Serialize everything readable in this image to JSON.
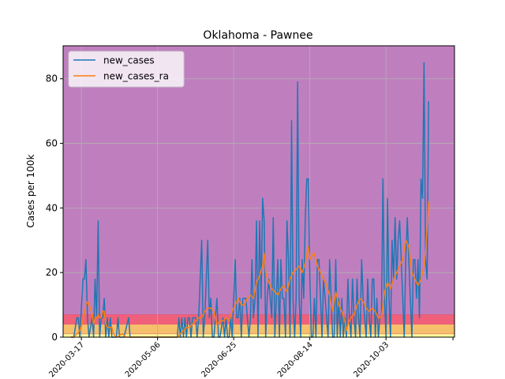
{
  "chart_data": {
    "type": "line",
    "title": "Oklahoma - Pawnee",
    "xlabel": "",
    "ylabel": "Cases per 100k",
    "x_start": "2020-03-10",
    "x_tick_labels": [
      "2020-03-17",
      "2020-05-06",
      "2020-06-25",
      "2020-08-14",
      "2020-10-03"
    ],
    "x_tick_days": [
      7,
      57,
      107,
      157,
      207
    ],
    "y_ticks": [
      0,
      20,
      40,
      60,
      80
    ],
    "ylim": [
      0,
      90.2
    ],
    "xlim_days": [
      -5,
      252
    ],
    "grid": true,
    "legend": {
      "position": "top-left"
    },
    "bands": [
      {
        "from": 0,
        "to": 1,
        "color": "#ffff99"
      },
      {
        "from": 1,
        "to": 4,
        "color": "#f5bf6b"
      },
      {
        "from": 4,
        "to": 7,
        "color": "#f0607a"
      },
      {
        "from": 7,
        "to": 90.2,
        "color": "#bf7fbf"
      }
    ],
    "series": [
      {
        "name": "new_cases",
        "color": "#1f77b4",
        "points": [
          [
            0,
            0
          ],
          [
            2,
            0
          ],
          [
            4,
            6
          ],
          [
            5,
            6
          ],
          [
            6,
            0
          ],
          [
            8,
            18
          ],
          [
            9,
            18
          ],
          [
            10,
            24
          ],
          [
            11,
            6
          ],
          [
            12,
            0
          ],
          [
            14,
            6
          ],
          [
            15,
            0
          ],
          [
            16,
            18
          ],
          [
            17,
            6
          ],
          [
            18,
            36
          ],
          [
            19,
            0
          ],
          [
            20,
            6
          ],
          [
            21,
            6
          ],
          [
            22,
            12
          ],
          [
            23,
            0
          ],
          [
            24,
            6
          ],
          [
            25,
            0
          ],
          [
            26,
            6
          ],
          [
            27,
            0
          ],
          [
            28,
            0
          ],
          [
            30,
            0
          ],
          [
            31,
            6
          ],
          [
            32,
            0
          ],
          [
            34,
            0
          ],
          [
            35,
            0
          ],
          [
            38,
            6
          ],
          [
            39,
            0
          ],
          [
            40,
            0
          ],
          [
            42,
            0
          ],
          [
            44,
            0
          ],
          [
            46,
            0
          ],
          [
            48,
            0
          ],
          [
            50,
            0
          ],
          [
            52,
            0
          ],
          [
            54,
            0
          ],
          [
            56,
            0
          ],
          [
            58,
            0
          ],
          [
            60,
            0
          ],
          [
            62,
            0
          ],
          [
            64,
            0
          ],
          [
            66,
            0
          ],
          [
            68,
            0
          ],
          [
            70,
            0
          ],
          [
            71,
            6
          ],
          [
            72,
            0
          ],
          [
            73,
            6
          ],
          [
            74,
            0
          ],
          [
            75,
            6
          ],
          [
            76,
            0
          ],
          [
            77,
            6
          ],
          [
            78,
            6
          ],
          [
            79,
            0
          ],
          [
            80,
            6
          ],
          [
            82,
            6
          ],
          [
            83,
            0
          ],
          [
            84,
            6
          ],
          [
            86,
            30
          ],
          [
            87,
            0
          ],
          [
            88,
            6
          ],
          [
            90,
            30
          ],
          [
            91,
            6
          ],
          [
            92,
            12
          ],
          [
            93,
            0
          ],
          [
            94,
            0
          ],
          [
            96,
            12
          ],
          [
            97,
            0
          ],
          [
            98,
            0
          ],
          [
            100,
            6
          ],
          [
            101,
            0
          ],
          [
            102,
            6
          ],
          [
            103,
            0
          ],
          [
            104,
            0
          ],
          [
            105,
            6
          ],
          [
            106,
            0
          ],
          [
            107,
            12
          ],
          [
            108,
            24
          ],
          [
            109,
            6
          ],
          [
            110,
            6
          ],
          [
            111,
            12
          ],
          [
            112,
            0
          ],
          [
            113,
            12
          ],
          [
            114,
            12
          ],
          [
            115,
            12
          ],
          [
            116,
            6
          ],
          [
            117,
            0
          ],
          [
            118,
            6
          ],
          [
            119,
            24
          ],
          [
            120,
            6
          ],
          [
            121,
            12
          ],
          [
            122,
            36
          ],
          [
            123,
            0
          ],
          [
            124,
            36
          ],
          [
            125,
            12
          ],
          [
            126,
            43
          ],
          [
            127,
            36
          ],
          [
            128,
            0
          ],
          [
            129,
            12
          ],
          [
            130,
            18
          ],
          [
            131,
            12
          ],
          [
            132,
            6
          ],
          [
            133,
            37
          ],
          [
            134,
            0
          ],
          [
            135,
            12
          ],
          [
            136,
            24
          ],
          [
            137,
            0
          ],
          [
            138,
            24
          ],
          [
            139,
            12
          ],
          [
            140,
            12
          ],
          [
            141,
            0
          ],
          [
            142,
            36
          ],
          [
            143,
            24
          ],
          [
            144,
            0
          ],
          [
            145,
            67
          ],
          [
            146,
            12
          ],
          [
            147,
            0
          ],
          [
            148,
            12
          ],
          [
            149,
            79
          ],
          [
            150,
            12
          ],
          [
            151,
            0
          ],
          [
            152,
            24
          ],
          [
            153,
            12
          ],
          [
            154,
            37
          ],
          [
            155,
            49
          ],
          [
            156,
            49
          ],
          [
            157,
            18
          ],
          [
            158,
            0
          ],
          [
            159,
            0
          ],
          [
            160,
            12
          ],
          [
            161,
            0
          ],
          [
            162,
            24
          ],
          [
            163,
            24
          ],
          [
            164,
            12
          ],
          [
            165,
            0
          ],
          [
            166,
            18
          ],
          [
            167,
            12
          ],
          [
            168,
            6
          ],
          [
            169,
            0
          ],
          [
            170,
            24
          ],
          [
            171,
            12
          ],
          [
            172,
            0
          ],
          [
            173,
            0
          ],
          [
            174,
            24
          ],
          [
            175,
            0
          ],
          [
            176,
            12
          ],
          [
            177,
            0
          ],
          [
            178,
            12
          ],
          [
            179,
            0
          ],
          [
            180,
            6
          ],
          [
            181,
            0
          ],
          [
            182,
            18
          ],
          [
            183,
            6
          ],
          [
            184,
            0
          ],
          [
            185,
            18
          ],
          [
            186,
            6
          ],
          [
            187,
            0
          ],
          [
            188,
            18
          ],
          [
            189,
            6
          ],
          [
            190,
            0
          ],
          [
            191,
            24
          ],
          [
            192,
            12
          ],
          [
            193,
            6
          ],
          [
            194,
            0
          ],
          [
            195,
            18
          ],
          [
            196,
            6
          ],
          [
            197,
            0
          ],
          [
            198,
            18
          ],
          [
            199,
            18
          ],
          [
            200,
            0
          ],
          [
            201,
            12
          ],
          [
            202,
            0
          ],
          [
            203,
            6
          ],
          [
            204,
            6
          ],
          [
            205,
            49
          ],
          [
            206,
            12
          ],
          [
            207,
            0
          ],
          [
            208,
            43
          ],
          [
            209,
            12
          ],
          [
            210,
            0
          ],
          [
            211,
            30
          ],
          [
            212,
            18
          ],
          [
            213,
            37
          ],
          [
            214,
            18
          ],
          [
            215,
            30
          ],
          [
            216,
            36
          ],
          [
            217,
            24
          ],
          [
            218,
            12
          ],
          [
            219,
            0
          ],
          [
            220,
            24
          ],
          [
            221,
            37
          ],
          [
            222,
            24
          ],
          [
            223,
            12
          ],
          [
            224,
            0
          ],
          [
            225,
            24
          ],
          [
            226,
            24
          ],
          [
            227,
            12
          ],
          [
            228,
            24
          ],
          [
            229,
            6
          ],
          [
            230,
            49
          ],
          [
            231,
            43
          ],
          [
            232,
            85
          ],
          [
            233,
            24
          ],
          [
            234,
            18
          ],
          [
            235,
            73
          ]
        ]
      },
      {
        "name": "new_cases_ra",
        "color": "#ff7f0e",
        "points": [
          [
            0,
            0
          ],
          [
            2,
            0
          ],
          [
            4,
            1
          ],
          [
            6,
            2
          ],
          [
            8,
            5
          ],
          [
            10,
            10
          ],
          [
            11,
            11
          ],
          [
            12,
            10
          ],
          [
            13,
            9
          ],
          [
            14,
            7
          ],
          [
            15,
            4
          ],
          [
            16,
            6
          ],
          [
            17,
            6
          ],
          [
            18,
            7
          ],
          [
            19,
            6
          ],
          [
            20,
            6
          ],
          [
            21,
            8
          ],
          [
            22,
            8
          ],
          [
            23,
            4
          ],
          [
            24,
            3
          ],
          [
            25,
            3
          ],
          [
            26,
            3
          ],
          [
            27,
            3
          ],
          [
            28,
            1
          ],
          [
            30,
            0
          ],
          [
            32,
            0.5
          ],
          [
            34,
            1
          ],
          [
            36,
            0
          ],
          [
            40,
            0
          ],
          [
            44,
            0
          ],
          [
            48,
            0
          ],
          [
            52,
            0
          ],
          [
            56,
            0
          ],
          [
            60,
            0
          ],
          [
            64,
            0
          ],
          [
            68,
            0
          ],
          [
            70,
            0
          ],
          [
            72,
            1
          ],
          [
            74,
            2
          ],
          [
            76,
            3
          ],
          [
            78,
            3
          ],
          [
            80,
            4
          ],
          [
            82,
            5
          ],
          [
            84,
            6
          ],
          [
            86,
            6
          ],
          [
            88,
            8
          ],
          [
            90,
            9
          ],
          [
            92,
            9
          ],
          [
            94,
            8
          ],
          [
            96,
            4
          ],
          [
            98,
            5
          ],
          [
            100,
            5
          ],
          [
            102,
            6
          ],
          [
            104,
            5
          ],
          [
            106,
            8
          ],
          [
            108,
            10
          ],
          [
            110,
            12
          ],
          [
            112,
            10
          ],
          [
            114,
            10
          ],
          [
            116,
            12
          ],
          [
            118,
            13
          ],
          [
            120,
            12
          ],
          [
            122,
            17
          ],
          [
            124,
            19
          ],
          [
            126,
            22
          ],
          [
            127,
            26
          ],
          [
            128,
            20
          ],
          [
            130,
            17
          ],
          [
            132,
            15
          ],
          [
            134,
            14
          ],
          [
            136,
            13
          ],
          [
            138,
            15
          ],
          [
            140,
            16
          ],
          [
            142,
            14
          ],
          [
            144,
            18
          ],
          [
            146,
            20
          ],
          [
            148,
            21
          ],
          [
            150,
            22
          ],
          [
            152,
            20
          ],
          [
            154,
            23
          ],
          [
            156,
            28
          ],
          [
            157,
            24
          ],
          [
            158,
            25
          ],
          [
            160,
            26
          ],
          [
            162,
            22
          ],
          [
            164,
            20
          ],
          [
            166,
            18
          ],
          [
            168,
            16
          ],
          [
            170,
            13
          ],
          [
            172,
            8
          ],
          [
            174,
            14
          ],
          [
            176,
            10
          ],
          [
            178,
            8
          ],
          [
            180,
            5
          ],
          [
            181,
            2
          ],
          [
            182,
            4
          ],
          [
            184,
            6
          ],
          [
            186,
            7
          ],
          [
            188,
            10
          ],
          [
            190,
            12
          ],
          [
            192,
            11
          ],
          [
            194,
            9
          ],
          [
            196,
            8
          ],
          [
            198,
            9
          ],
          [
            200,
            8
          ],
          [
            202,
            6
          ],
          [
            204,
            6
          ],
          [
            206,
            14
          ],
          [
            208,
            17
          ],
          [
            210,
            15
          ],
          [
            212,
            18
          ],
          [
            214,
            20
          ],
          [
            216,
            22
          ],
          [
            218,
            24
          ],
          [
            220,
            30
          ],
          [
            222,
            28
          ],
          [
            224,
            20
          ],
          [
            226,
            18
          ],
          [
            228,
            16
          ],
          [
            230,
            18
          ],
          [
            232,
            22
          ],
          [
            233,
            26
          ],
          [
            234,
            34
          ],
          [
            235,
            42
          ]
        ]
      }
    ]
  }
}
